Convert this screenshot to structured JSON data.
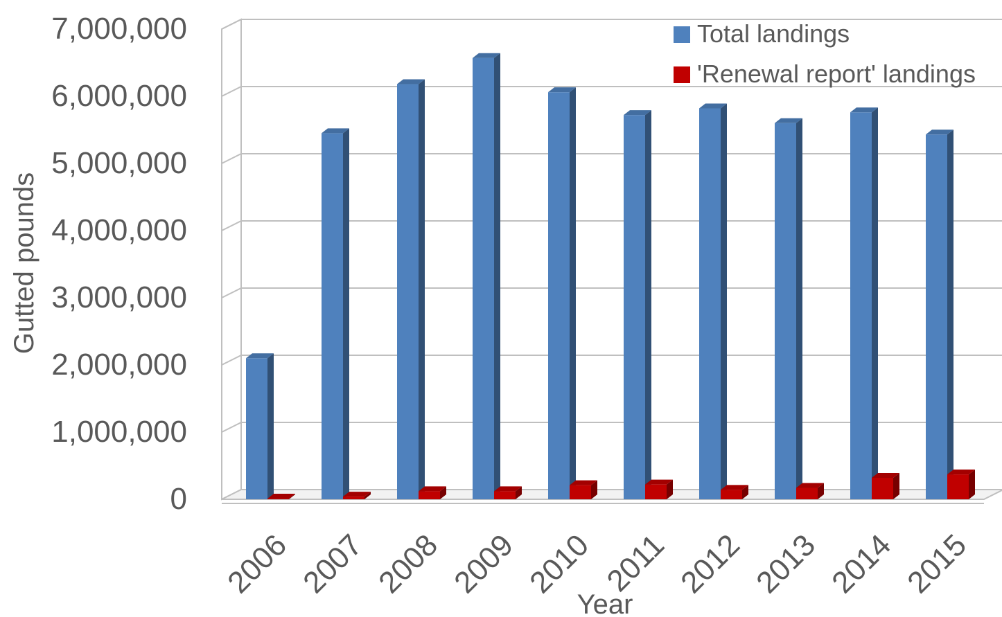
{
  "chart_data": {
    "type": "bar",
    "style": "3d-clustered-column",
    "categories": [
      "2006",
      "2007",
      "2008",
      "2009",
      "2010",
      "2011",
      "2012",
      "2013",
      "2014",
      "2015"
    ],
    "series": [
      {
        "name": "Total landings",
        "color": "#4F81BD",
        "values": [
          2100000,
          5450000,
          6180000,
          6570000,
          6060000,
          5720000,
          5820000,
          5600000,
          5760000,
          5430000
        ]
      },
      {
        "name": "'Renewal report' landings",
        "color": "#C00000",
        "values": [
          10000,
          40000,
          120000,
          120000,
          210000,
          220000,
          140000,
          170000,
          320000,
          370000
        ]
      }
    ],
    "ylim": [
      0,
      7000000
    ],
    "yticks": [
      0,
      1000000,
      2000000,
      3000000,
      4000000,
      5000000,
      6000000,
      7000000
    ],
    "ytick_labels": [
      "0",
      "1,000,000",
      "2,000,000",
      "3,000,000",
      "4,000,000",
      "5,000,000",
      "6,000,000",
      "7,000,000"
    ],
    "xlabel": "Year",
    "ylabel": "Gutted pounds",
    "grid": true,
    "legend_position": "top-right"
  }
}
